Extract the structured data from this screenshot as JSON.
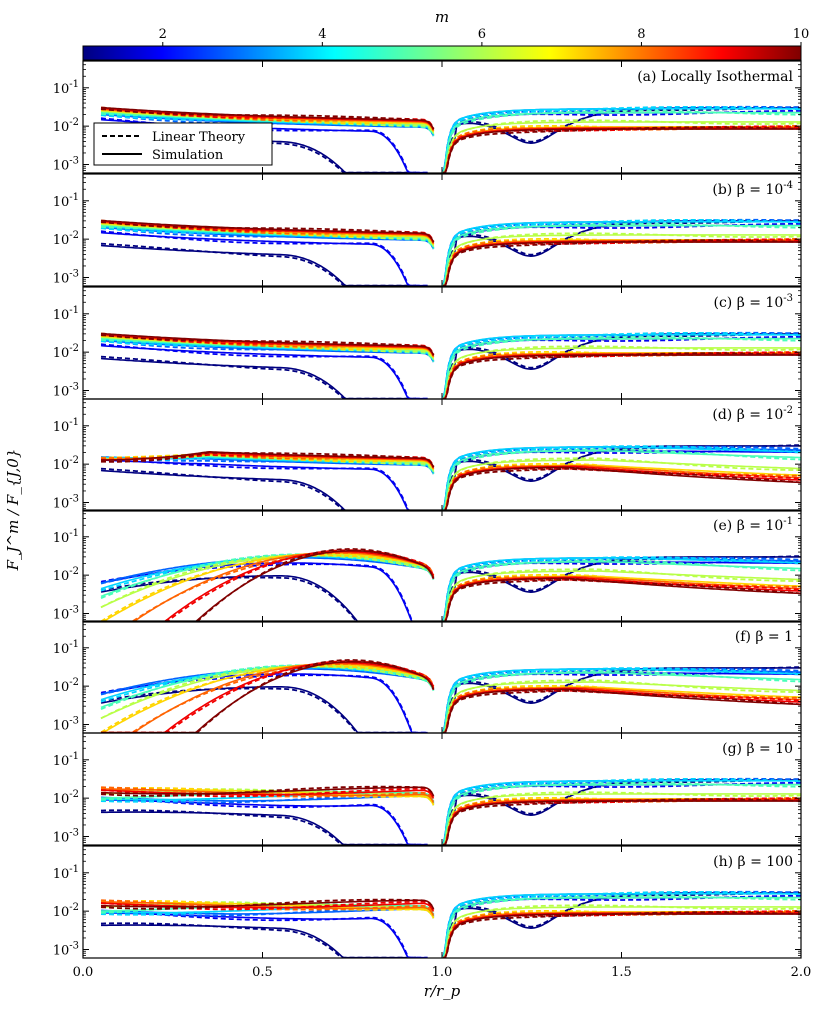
{
  "chart_data": {
    "type": "line",
    "xlabel": "r/r_p",
    "ylabel": "F_J^m / F_{J,0}",
    "xlim": [
      0.0,
      2.0
    ],
    "ylim_log": [
      0.0006,
      0.5
    ],
    "x_ticks": [
      "0.0",
      "0.5",
      "1.0",
      "1.5",
      "2.0"
    ],
    "x_tick_values": [
      0.0,
      0.5,
      1.0,
      1.5,
      2.0
    ],
    "y_ticks": [
      "10^-1",
      "10^-2",
      "10^-3"
    ],
    "y_tick_values": [
      0.1,
      0.01,
      0.001
    ],
    "colorbar": {
      "label": "m",
      "ticks": [
        "2",
        "4",
        "6",
        "8",
        "10"
      ],
      "tick_values": [
        2,
        4,
        6,
        8,
        10
      ],
      "range": [
        1,
        10
      ],
      "colormap": "jet"
    },
    "legend": {
      "location": "upper-left of panel (a)",
      "entries": [
        {
          "label": "Linear Theory",
          "style": "dashed"
        },
        {
          "label": "Simulation",
          "style": "solid"
        }
      ]
    },
    "m_values": [
      1,
      2,
      3,
      4,
      5,
      6,
      7,
      8,
      9,
      10
    ],
    "panels": [
      {
        "label": "(a) Locally Isothermal",
        "beta": null
      },
      {
        "label": "(b) β = 10^-4",
        "beta": 0.0001
      },
      {
        "label": "(c) β = 10^-3",
        "beta": 0.001
      },
      {
        "label": "(d) β = 10^-2",
        "beta": 0.01
      },
      {
        "label": "(e) β = 10^-1",
        "beta": 0.1
      },
      {
        "label": "(f) β = 1",
        "beta": 1
      },
      {
        "label": "(g) β = 10",
        "beta": 10
      },
      {
        "label": "(h) β = 100",
        "beta": 100
      }
    ]
  }
}
